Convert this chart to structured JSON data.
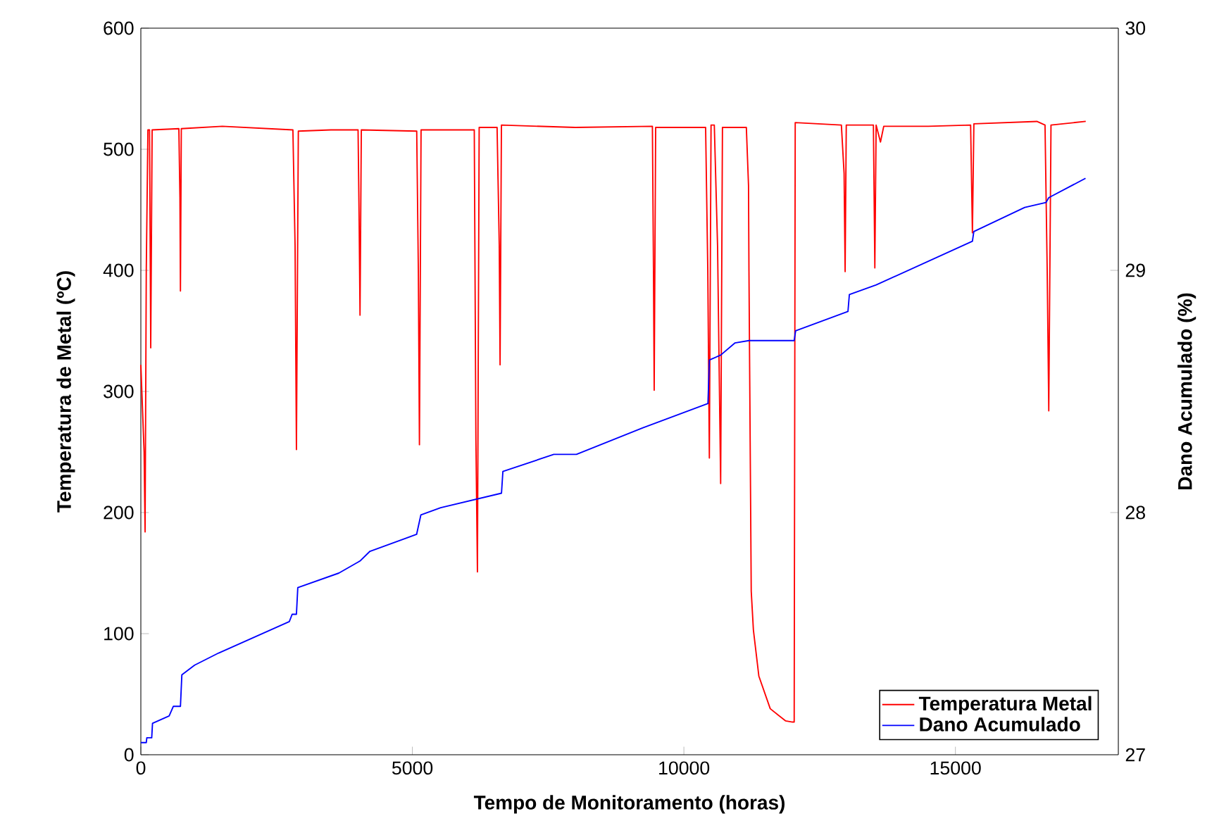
{
  "chart_data": {
    "type": "line",
    "xlabel": "Tempo de Monitoramento (horas)",
    "ylabel": "Temperatura de Metal (ºC)",
    "y2label": "Dano Acumulado (%)",
    "xlim": [
      0,
      18000
    ],
    "xticks": [
      0,
      5000,
      10000,
      15000
    ],
    "ylim": [
      0,
      600
    ],
    "yticks": [
      0,
      100,
      200,
      300,
      400,
      500,
      600
    ],
    "y2lim": [
      27,
      30
    ],
    "y2ticks": [
      27,
      28,
      29,
      30
    ],
    "grid": false,
    "legend": "bottom right",
    "marker": "none",
    "line_style": "solid",
    "series": [
      {
        "name": "Temperatura Metal",
        "color": "#ff0000",
        "x": [
          0,
          60,
          78,
          100,
          130,
          160,
          182,
          208,
          700,
          720,
          729,
          745,
          1500,
          2800,
          2840,
          2865,
          2900,
          3500,
          4000,
          4020,
          4036,
          4060,
          5080,
          5110,
          5130,
          5160,
          6140,
          6170,
          6198,
          6230,
          6560,
          6600,
          6615,
          6640,
          8000,
          9420,
          9440,
          9453,
          9480,
          10400,
          10440,
          10469,
          10500,
          10560,
          10620,
          10677,
          10710,
          11150,
          11190,
          11198,
          11240,
          11280,
          11380,
          11590,
          11870,
          12000,
          12031,
          12050,
          12900,
          12950,
          12969,
          12990,
          13490,
          13516,
          13540,
          13620,
          13680,
          14500,
          15280,
          15313,
          15340,
          16500,
          16650,
          16690,
          16719,
          16760,
          17400
        ],
        "values": [
          322,
          250,
          184,
          400,
          516,
          516,
          336,
          516,
          517,
          460,
          383,
          517,
          519,
          516,
          420,
          252,
          515,
          516,
          516,
          440,
          363,
          516,
          515,
          400,
          256,
          516,
          516,
          260,
          151,
          518,
          518,
          420,
          322,
          520,
          518,
          519,
          400,
          301,
          518,
          518,
          400,
          245,
          520,
          520,
          420,
          224,
          518,
          518,
          470,
          400,
          135,
          103,
          65,
          38,
          28,
          27,
          27,
          522,
          520,
          480,
          399,
          520,
          520,
          402,
          520,
          506,
          519,
          519,
          520,
          431,
          521,
          523,
          520,
          400,
          284,
          520,
          523
        ]
      },
      {
        "name": "Dano Acumulado",
        "color": "#0000ff",
        "axis": "y2",
        "x": [
          0,
          100,
          110,
          200,
          215,
          521,
          599,
          729,
          755,
          990,
          1432,
          2734,
          2786,
          2865,
          2890,
          3646,
          4036,
          4219,
          5078,
          5156,
          5521,
          6641,
          6667,
          7604,
          8021,
          9245,
          10443,
          10469,
          10677,
          10938,
          11198,
          12031,
          12057,
          13021,
          13047,
          13542,
          15313,
          15339,
          16276,
          16667,
          16719,
          17396
        ],
        "values": [
          27.05,
          27.05,
          27.07,
          27.07,
          27.13,
          27.16,
          27.2,
          27.2,
          27.33,
          27.37,
          27.42,
          27.55,
          27.58,
          27.58,
          27.69,
          27.75,
          27.8,
          27.84,
          27.91,
          27.99,
          28.02,
          28.08,
          28.17,
          28.24,
          28.24,
          28.35,
          28.45,
          28.63,
          28.65,
          28.7,
          28.71,
          28.71,
          28.75,
          28.83,
          28.9,
          28.94,
          29.12,
          29.16,
          29.26,
          29.28,
          29.3,
          29.38
        ]
      }
    ]
  }
}
